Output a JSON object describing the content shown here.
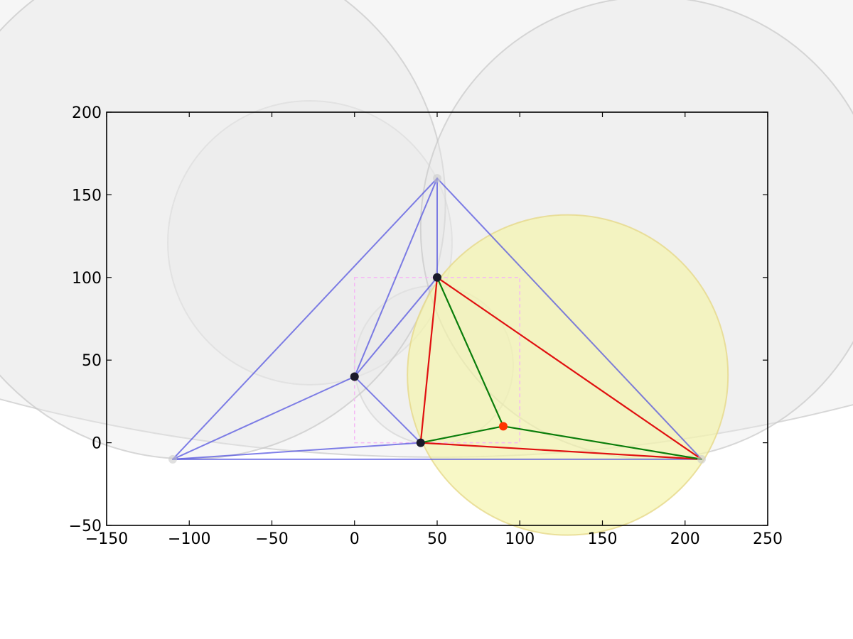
{
  "chart_data": {
    "type": "scatter",
    "title": "",
    "xlabel": "",
    "ylabel": "",
    "xlim": [
      -150,
      250
    ],
    "ylim": [
      -50,
      200
    ],
    "grid": false,
    "x_ticks": [
      -150,
      -100,
      -50,
      0,
      50,
      100,
      150,
      200,
      250
    ],
    "y_ticks": [
      -50,
      0,
      50,
      100,
      150,
      200
    ],
    "x_tick_labels": [
      "−150",
      "−100",
      "−50",
      "0",
      "50",
      "100",
      "150",
      "200",
      "250"
    ],
    "y_tick_labels": [
      "−50",
      "0",
      "50",
      "100",
      "150",
      "200"
    ],
    "points": [
      {
        "x": 0,
        "y": 40,
        "kind": "input"
      },
      {
        "x": 40,
        "y": 0,
        "kind": "input"
      },
      {
        "x": 50,
        "y": 100,
        "kind": "input"
      },
      {
        "x": 90,
        "y": 10,
        "kind": "new"
      },
      {
        "x": -110,
        "y": -10,
        "kind": "super"
      },
      {
        "x": 50,
        "y": 160,
        "kind": "super"
      },
      {
        "x": 210,
        "y": -10,
        "kind": "super"
      }
    ],
    "bounding_box": {
      "x": [
        0,
        100
      ],
      "y": [
        0,
        100
      ]
    },
    "triangulation_edges": [
      [
        [
          0,
          40
        ],
        [
          40,
          0
        ]
      ],
      [
        [
          0,
          40
        ],
        [
          50,
          100
        ]
      ],
      [
        [
          0,
          40
        ],
        [
          -110,
          -10
        ]
      ],
      [
        [
          0,
          40
        ],
        [
          50,
          160
        ]
      ],
      [
        [
          40,
          0
        ],
        [
          -110,
          -10
        ]
      ],
      [
        [
          50,
          100
        ],
        [
          50,
          160
        ]
      ],
      [
        [
          -110,
          -10
        ],
        [
          50,
          160
        ]
      ],
      [
        [
          -110,
          -10
        ],
        [
          210,
          -10
        ]
      ],
      [
        [
          50,
          160
        ],
        [
          210,
          -10
        ]
      ]
    ],
    "bad_triangle_edges": [
      [
        [
          40,
          0
        ],
        [
          50,
          100
        ]
      ],
      [
        [
          50,
          100
        ],
        [
          210,
          -10
        ]
      ],
      [
        [
          40,
          0
        ],
        [
          210,
          -10
        ]
      ]
    ],
    "new_triangle_edges": [
      [
        [
          50,
          100
        ],
        [
          90,
          10
        ]
      ],
      [
        [
          40,
          0
        ],
        [
          90,
          10
        ]
      ],
      [
        [
          90,
          10
        ],
        [
          210,
          -10
        ]
      ]
    ],
    "circumcircles": [
      {
        "cx": -27,
        "cy": 121,
        "r": 86,
        "kind": "circumcircle"
      },
      {
        "cx": 48,
        "cy": 47,
        "r": 48,
        "kind": "circumcircle"
      },
      {
        "cx": 50,
        "cy": 1004,
        "r": 1014,
        "kind": "circumcircle"
      },
      {
        "cx": -100,
        "cy": 145,
        "r": 155,
        "kind": "circumcircle"
      },
      {
        "cx": 180,
        "cy": 130,
        "r": 140,
        "kind": "circumcircle"
      },
      {
        "cx": 129,
        "cy": 41,
        "r": 97,
        "kind": "bad"
      }
    ],
    "colors": {
      "circle_fill": "#e8e8e8",
      "circle_stroke": "#c8c8c8",
      "bad_circle_fill": "#f5f5a8",
      "bad_circle_stroke": "#e6d88a",
      "edge": "#4a4ae0",
      "bad_edge": "#e01010",
      "new_edge": "#0a7d0a",
      "input_point": "#1a1a2a",
      "new_point": "#ff3300",
      "super_point": "#cccccc",
      "bbox": "#f5b8f5"
    }
  }
}
